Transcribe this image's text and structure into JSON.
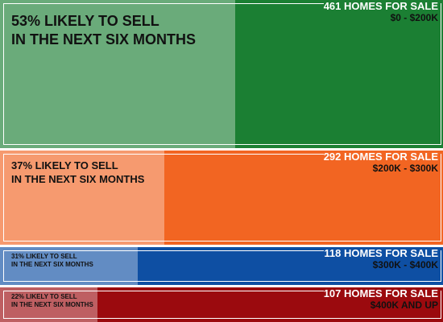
{
  "chart_data": {
    "type": "bar",
    "title": "",
    "categories": [
      "$0 - $200K",
      "$200K - $300K",
      "$300K - $400K",
      "$400K AND UP"
    ],
    "series": [
      {
        "name": "Homes for sale",
        "values": [
          461,
          292,
          118,
          107
        ]
      },
      {
        "name": "Likely to sell in the next six months (%)",
        "values": [
          53,
          37,
          31,
          22
        ]
      }
    ],
    "bands": [
      {
        "color": "#1b7f33",
        "homes": 461,
        "pct": 53,
        "pct_line1": "53% LIKELY TO SELL",
        "pct_line2": "IN THE NEXT SIX MONTHS",
        "count_label": "461 HOMES FOR SALE",
        "range_label": "$0 - $200K"
      },
      {
        "color": "#f26522",
        "homes": 292,
        "pct": 37,
        "pct_line1": "37% LIKELY TO SELL",
        "pct_line2": "IN THE NEXT SIX MONTHS",
        "count_label": "292 HOMES FOR SALE",
        "range_label": "$200K - $300K"
      },
      {
        "color": "#0e4fa3",
        "homes": 118,
        "pct": 31,
        "pct_line1": "31% LIKELY TO SELL",
        "pct_line2": "IN THE NEXT SIX MONTHS",
        "count_label": "118 HOMES FOR SALE",
        "range_label": "$300K - $400K"
      },
      {
        "color": "#9b0a0e",
        "homes": 107,
        "pct": 22,
        "pct_line1": "22% LIKELY TO SELL",
        "pct_line2": "IN THE NEXT SIX MONTHS",
        "count_label": "107 HOMES FOR SALE",
        "range_label": "$400K AND UP"
      }
    ]
  }
}
